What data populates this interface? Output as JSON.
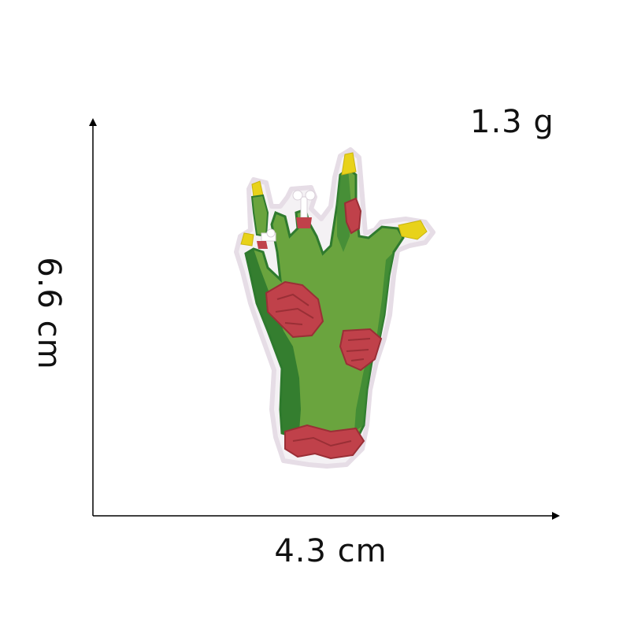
{
  "product_image": {
    "subject": "embroidered zombie hand patch",
    "colors": {
      "skin": "#5f9a3a",
      "skin_shadow": "#2f7a2e",
      "wound": "#c0414a",
      "wound_dark": "#9a2f36",
      "nail": "#e8d21a",
      "bone": "#ffffff",
      "border": "#ffffff"
    }
  },
  "dimensions": {
    "weight": "1.3 g",
    "height": "6.6 cm",
    "width": "4.3 cm"
  },
  "axis_color": "#000000"
}
